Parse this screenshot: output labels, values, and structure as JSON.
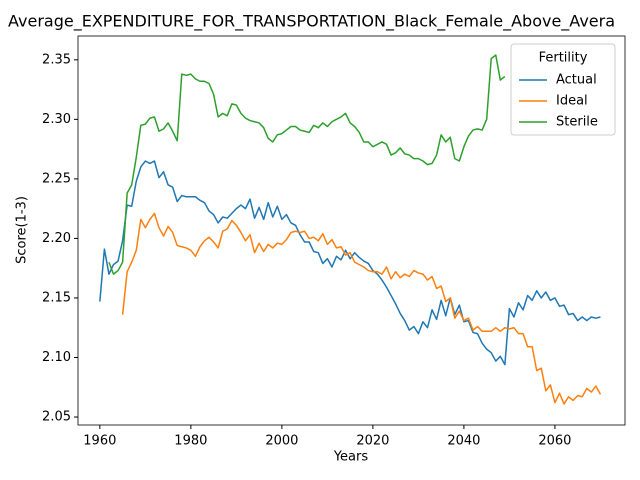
{
  "chart_data": {
    "type": "line",
    "title": "Average_EXPENDITURE_FOR_TRANSPORTATION_Black_Female_Above_Avera",
    "x_label": "Years",
    "y_label": "Score(1-3)",
    "legend_title": "Fertility",
    "legend_loc": "upper right",
    "x": [
      1960,
      1961,
      1962,
      1963,
      1964,
      1965,
      1966,
      1967,
      1968,
      1969,
      1970,
      1971,
      1972,
      1973,
      1974,
      1975,
      1976,
      1977,
      1978,
      1979,
      1980,
      1981,
      1982,
      1983,
      1984,
      1985,
      1986,
      1987,
      1988,
      1989,
      1990,
      1991,
      1992,
      1993,
      1994,
      1995,
      1996,
      1997,
      1998,
      1999,
      2000,
      2001,
      2002,
      2003,
      2004,
      2005,
      2006,
      2007,
      2008,
      2009,
      2010,
      2011,
      2012,
      2013,
      2014,
      2015,
      2016,
      2017,
      2018,
      2019,
      2020,
      2021,
      2022,
      2023,
      2024,
      2025,
      2026,
      2027,
      2028,
      2029,
      2030,
      2031,
      2032,
      2033,
      2034,
      2035,
      2036,
      2037,
      2038,
      2039,
      2040,
      2041,
      2042,
      2043,
      2044,
      2045,
      2046,
      2047,
      2048,
      2049,
      2050,
      2051,
      2052,
      2053,
      2054,
      2055,
      2056,
      2057,
      2058,
      2059,
      2060,
      2061,
      2062,
      2063,
      2064,
      2065,
      2066,
      2067,
      2068,
      2069,
      2070
    ],
    "series": [
      {
        "name": "Actual",
        "color": "#1f77b4",
        "values": [
          2.147,
          2.191,
          2.17,
          2.178,
          2.181,
          2.198,
          2.228,
          2.227,
          2.248,
          2.26,
          2.265,
          2.263,
          2.265,
          2.251,
          2.256,
          2.245,
          2.243,
          2.231,
          2.236,
          2.235,
          2.235,
          2.235,
          2.232,
          2.23,
          2.223,
          2.22,
          2.213,
          2.218,
          2.217,
          2.221,
          2.225,
          2.228,
          2.225,
          2.233,
          2.217,
          2.226,
          2.216,
          2.23,
          2.218,
          2.227,
          2.216,
          2.22,
          2.213,
          2.211,
          2.203,
          2.197,
          2.197,
          2.189,
          2.188,
          2.179,
          2.183,
          2.176,
          2.185,
          2.182,
          2.19,
          2.183,
          2.188,
          2.184,
          2.181,
          2.179,
          2.173,
          2.17,
          2.165,
          2.159,
          2.152,
          2.145,
          2.137,
          2.131,
          2.123,
          2.126,
          2.12,
          2.13,
          2.125,
          2.14,
          2.132,
          2.148,
          2.135,
          2.15,
          2.136,
          2.144,
          2.13,
          2.131,
          2.121,
          2.12,
          2.112,
          2.107,
          2.104,
          2.097,
          2.101,
          2.094,
          2.141,
          2.134,
          2.146,
          2.14,
          2.152,
          2.148,
          2.156,
          2.15,
          2.155,
          2.148,
          2.15,
          2.143,
          2.144,
          2.136,
          2.137,
          2.131,
          2.134,
          2.131,
          2.134,
          2.133,
          2.134
        ]
      },
      {
        "name": "Ideal",
        "color": "#ff7f0e",
        "values": [
          null,
          null,
          null,
          null,
          null,
          2.136,
          2.172,
          2.18,
          2.19,
          2.216,
          2.209,
          2.216,
          2.221,
          2.209,
          2.202,
          2.21,
          2.205,
          2.194,
          2.193,
          2.192,
          2.19,
          2.185,
          2.193,
          2.198,
          2.201,
          2.197,
          2.192,
          2.206,
          2.208,
          2.215,
          2.211,
          2.205,
          2.198,
          2.203,
          2.188,
          2.196,
          2.189,
          2.195,
          2.192,
          2.196,
          2.195,
          2.199,
          2.205,
          2.206,
          2.205,
          2.206,
          2.2,
          2.201,
          2.198,
          2.204,
          2.195,
          2.199,
          2.192,
          2.193,
          2.186,
          2.188,
          2.18,
          2.178,
          2.176,
          2.173,
          2.172,
          2.172,
          2.17,
          2.176,
          2.166,
          2.172,
          2.167,
          2.17,
          2.168,
          2.173,
          2.171,
          2.17,
          2.165,
          2.168,
          2.158,
          2.16,
          2.147,
          2.15,
          2.133,
          2.139,
          2.131,
          2.133,
          2.123,
          2.126,
          2.122,
          2.122,
          2.122,
          2.125,
          2.122,
          2.125,
          2.124,
          2.125,
          2.12,
          2.12,
          2.109,
          2.109,
          2.089,
          2.091,
          2.072,
          2.077,
          2.062,
          2.07,
          2.061,
          2.067,
          2.064,
          2.068,
          2.067,
          2.074,
          2.071,
          2.076,
          2.069
        ]
      },
      {
        "name": "Sterile",
        "color": "#2ca02c",
        "values": [
          null,
          null,
          2.18,
          2.17,
          2.173,
          2.18,
          2.238,
          2.245,
          2.268,
          2.295,
          2.296,
          2.301,
          2.302,
          2.29,
          2.292,
          2.297,
          2.29,
          2.282,
          2.338,
          2.337,
          2.338,
          2.334,
          2.332,
          2.332,
          2.33,
          2.321,
          2.302,
          2.305,
          2.303,
          2.313,
          2.312,
          2.305,
          2.301,
          2.299,
          2.298,
          2.297,
          2.293,
          2.284,
          2.281,
          2.287,
          2.288,
          2.291,
          2.294,
          2.294,
          2.291,
          2.29,
          2.289,
          2.295,
          2.293,
          2.297,
          2.294,
          2.298,
          2.3,
          2.302,
          2.305,
          2.297,
          2.294,
          2.289,
          2.281,
          2.281,
          2.277,
          2.279,
          2.281,
          2.279,
          2.27,
          2.272,
          2.276,
          2.271,
          2.27,
          2.267,
          2.267,
          2.265,
          2.262,
          2.263,
          2.27,
          2.287,
          2.281,
          2.285,
          2.267,
          2.265,
          2.277,
          2.286,
          2.291,
          2.292,
          2.291,
          2.3,
          2.351,
          2.354,
          2.333,
          2.336,
          null,
          null,
          null,
          null,
          null,
          null,
          null,
          null,
          null,
          null,
          null,
          null,
          null,
          null,
          null,
          null,
          null,
          null,
          null,
          null,
          null
        ]
      }
    ],
    "xlim": [
      1955.2,
      2075.4
    ],
    "xticks": [
      1960,
      1980,
      2000,
      2020,
      2040,
      2060
    ],
    "ylim": [
      2.0433,
      2.37
    ],
    "yticks": [
      2.05,
      {
        "value": 2.1,
        "label": "2.10"
      },
      2.15,
      {
        "value": 2.2,
        "label": "2.20"
      },
      2.25,
      {
        "value": 2.3,
        "label": "2.30"
      },
      2.35
    ]
  }
}
